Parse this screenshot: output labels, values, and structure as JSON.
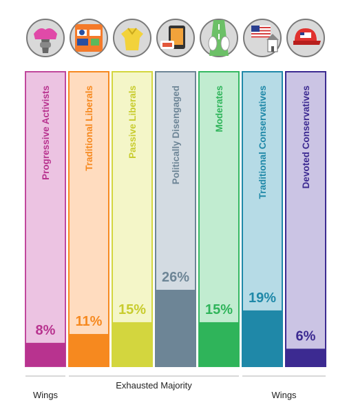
{
  "chart_data": {
    "type": "bar",
    "categories": [
      "Progressive Activists",
      "Traditional Liberals",
      "Passive Liberals",
      "Politically Disengaged",
      "Moderates",
      "Traditional Conservatives",
      "Devoted Conservatives"
    ],
    "values": [
      8,
      11,
      15,
      26,
      15,
      19,
      6
    ],
    "value_labels": [
      "8%",
      "11%",
      "15%",
      "26%",
      "15%",
      "19%",
      "6%"
    ],
    "unit": "%",
    "ylim": [
      0,
      100
    ],
    "colors": [
      {
        "light": "#ecc3e2",
        "dark": "#b8338f",
        "border": "#c0479c",
        "text": "#b8338f"
      },
      {
        "light": "#ffdcbf",
        "dark": "#f6891f",
        "border": "#f6891f",
        "text": "#f6891f"
      },
      {
        "light": "#f4f6c8",
        "dark": "#d3d63e",
        "border": "#d3d63e",
        "text": "#c8cc2e"
      },
      {
        "light": "#d3dbe2",
        "dark": "#6d8596",
        "border": "#6d8596",
        "text": "#6d8596"
      },
      {
        "light": "#c1ecd0",
        "dark": "#2fb45a",
        "border": "#35b862",
        "text": "#2fb45a"
      },
      {
        "light": "#b6dbe6",
        "dark": "#1f88a8",
        "border": "#1f88a8",
        "text": "#1f88a8"
      },
      {
        "light": "#cbc4e4",
        "dark": "#3c2a91",
        "border": "#3c2a91",
        "text": "#3c2a91"
      }
    ],
    "icons": [
      "pink-hat-fist-icon",
      "bumper-stickers-icon",
      "yellow-shirt-icon",
      "smartphone-games-icon",
      "road-sneakers-icon",
      "flag-church-icon",
      "red-cap-icon"
    ],
    "groups": [
      {
        "label": "Wings",
        "from": 0,
        "to": 0
      },
      {
        "label": "Exhausted Majority",
        "from": 1,
        "to": 4
      },
      {
        "label": "Wings",
        "from": 5,
        "to": 6
      }
    ]
  }
}
